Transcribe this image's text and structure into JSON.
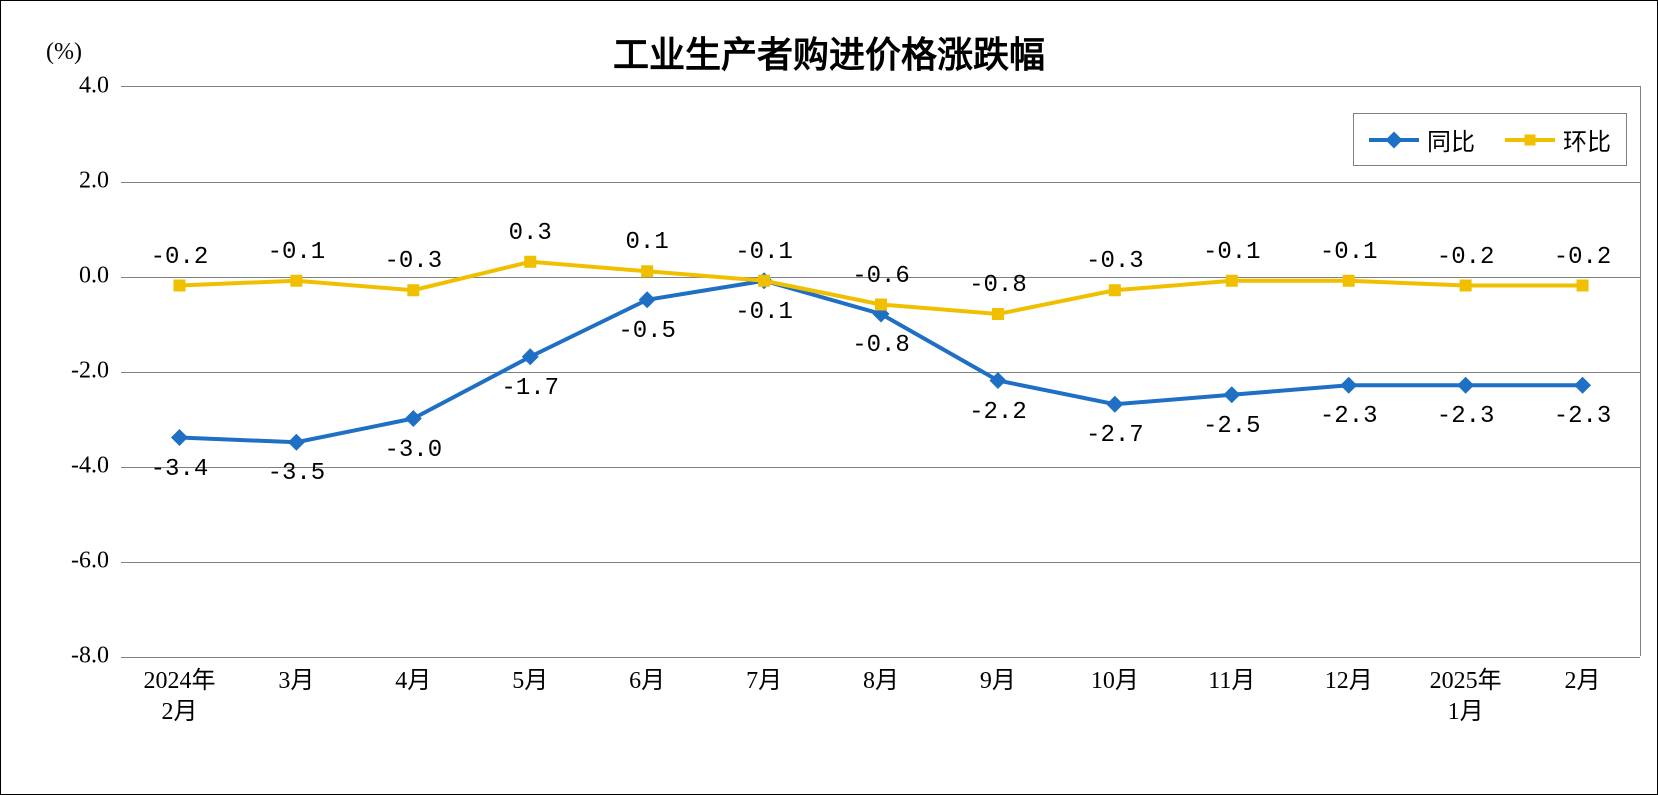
{
  "chart": {
    "title": "工业生产者购进价格涨跌幅",
    "y_axis_unit": "(%)",
    "type": "line",
    "background_color": "#ffffff",
    "border_color": "#000000",
    "grid_color": "#808080",
    "title_fontsize": 36,
    "label_fontsize": 24,
    "ylim": [
      -8.0,
      4.0
    ],
    "ytick_step": 2.0,
    "y_ticks": [
      "4.0",
      "2.0",
      "0.0",
      "-2.0",
      "-4.0",
      "-6.0",
      "-8.0"
    ],
    "x_categories": [
      "2024年\n2月",
      "3月",
      "4月",
      "5月",
      "6月",
      "7月",
      "8月",
      "9月",
      "10月",
      "11月",
      "12月",
      "2025年\n1月",
      "2月"
    ],
    "line_width": 4,
    "marker_size": 12,
    "series": [
      {
        "name": "同比",
        "color": "#1f6fc4",
        "marker": "diamond",
        "values": [
          -3.4,
          -3.5,
          -3.0,
          -1.7,
          -0.5,
          -0.1,
          -0.8,
          -2.2,
          -2.7,
          -2.5,
          -2.3,
          -2.3,
          -2.3
        ],
        "labels": [
          "-3.4",
          "-3.5",
          "-3.0",
          "-1.7",
          "-0.5",
          "-0.1",
          "-0.8",
          "-2.2",
          "-2.7",
          "-2.5",
          "-2.3",
          "-2.3",
          "-2.3"
        ],
        "label_position": "below"
      },
      {
        "name": "环比",
        "color": "#f0c000",
        "marker": "square",
        "values": [
          -0.2,
          -0.1,
          -0.3,
          0.3,
          0.1,
          -0.1,
          -0.6,
          -0.8,
          -0.3,
          -0.1,
          -0.1,
          -0.2,
          -0.2
        ],
        "labels": [
          "-0.2",
          "-0.1",
          "-0.3",
          "0.3",
          "0.1",
          "-0.1",
          "-0.6",
          "-0.8",
          "-0.3",
          "-0.1",
          "-0.1",
          "-0.2",
          "-0.2"
        ],
        "label_position": "above"
      }
    ],
    "legend_position": "top-right"
  }
}
